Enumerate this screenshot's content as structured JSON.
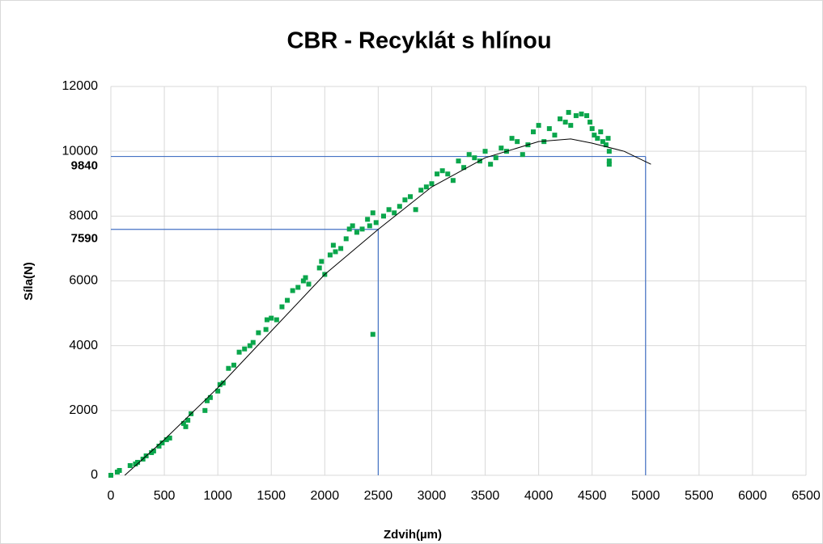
{
  "chart_data": {
    "type": "scatter",
    "title": "CBR - Recyklát s hlínou",
    "x_label": "Zdvih(µm)",
    "y_label": "Síla(N)",
    "xlim": [
      0,
      6500
    ],
    "ylim": [
      0,
      12000
    ],
    "xticks": [
      0,
      500,
      1000,
      1500,
      2000,
      2500,
      3000,
      3500,
      4000,
      4500,
      5000,
      5500,
      6000,
      6500
    ],
    "yticks": [
      0,
      2000,
      4000,
      6000,
      8000,
      10000,
      12000
    ],
    "grid": true,
    "series": [
      {
        "color": "#0aa64b",
        "x": [
          0,
          60,
          80,
          180,
          230,
          250,
          300,
          330,
          380,
          400,
          450,
          480,
          520,
          550,
          680,
          700,
          720,
          750,
          880,
          900,
          930,
          1000,
          1020,
          1050,
          1100,
          1150,
          1200,
          1250,
          1300,
          1330,
          1380,
          1450,
          1460,
          1500,
          1550,
          1600,
          1650,
          1700,
          1750,
          1800,
          1820,
          1850,
          1950,
          1970,
          2000,
          2050,
          2080,
          2100,
          2150,
          2200,
          2230,
          2260,
          2300,
          2350,
          2400,
          2420,
          2450,
          2480,
          2450,
          2550,
          2600,
          2650,
          2700,
          2750,
          2800,
          2850,
          2900,
          2950,
          3000,
          3050,
          3100,
          3150,
          3200,
          3250,
          3300,
          3350,
          3400,
          3450,
          3500,
          3550,
          3600,
          3650,
          3700,
          3750,
          3800,
          3850,
          3900,
          3950,
          4000,
          4050,
          4100,
          4150,
          4200,
          4250,
          4280,
          4300,
          4350,
          4400,
          4450,
          4480,
          4500,
          4520,
          4550,
          4580,
          4600,
          4630,
          4650,
          4660,
          4660,
          4660
        ],
        "values": [
          0,
          100,
          150,
          300,
          350,
          400,
          500,
          600,
          700,
          750,
          900,
          1000,
          1100,
          1150,
          1600,
          1500,
          1700,
          1900,
          2000,
          2300,
          2400,
          2600,
          2800,
          2850,
          3300,
          3400,
          3800,
          3900,
          4000,
          4100,
          4400,
          4500,
          4800,
          4850,
          4800,
          5200,
          5400,
          5700,
          5800,
          6000,
          6100,
          5900,
          6400,
          6600,
          6200,
          6800,
          7100,
          6900,
          7000,
          7300,
          7600,
          7700,
          7500,
          7600,
          7900,
          7700,
          8100,
          7800,
          4350,
          8000,
          8200,
          8100,
          8300,
          8500,
          8600,
          8200,
          8800,
          8900,
          9000,
          9300,
          9400,
          9300,
          9100,
          9700,
          9500,
          9900,
          9800,
          9700,
          10000,
          9600,
          9800,
          10100,
          10000,
          10400,
          10300,
          9900,
          10200,
          10600,
          10800,
          10300,
          10700,
          10500,
          11000,
          10900,
          11200,
          10800,
          11100,
          11150,
          11100,
          10900,
          10700,
          10500,
          10400,
          10600,
          10300,
          10200,
          10400,
          10000,
          9700,
          9600
        ]
      }
    ],
    "trendline": {
      "color": "#000000",
      "x": [
        130,
        500,
        1000,
        1500,
        2000,
        2500,
        3000,
        3500,
        4000,
        4300,
        4500,
        4800,
        5050
      ],
      "values": [
        0,
        1100,
        2700,
        4450,
        6200,
        7590,
        8900,
        9800,
        10300,
        10380,
        10250,
        10000,
        9600
      ]
    },
    "guides": [
      {
        "color": "#4472c4",
        "x": 2500,
        "y": 7590
      },
      {
        "color": "#4472c4",
        "x": 5000,
        "y": 9840
      }
    ]
  }
}
